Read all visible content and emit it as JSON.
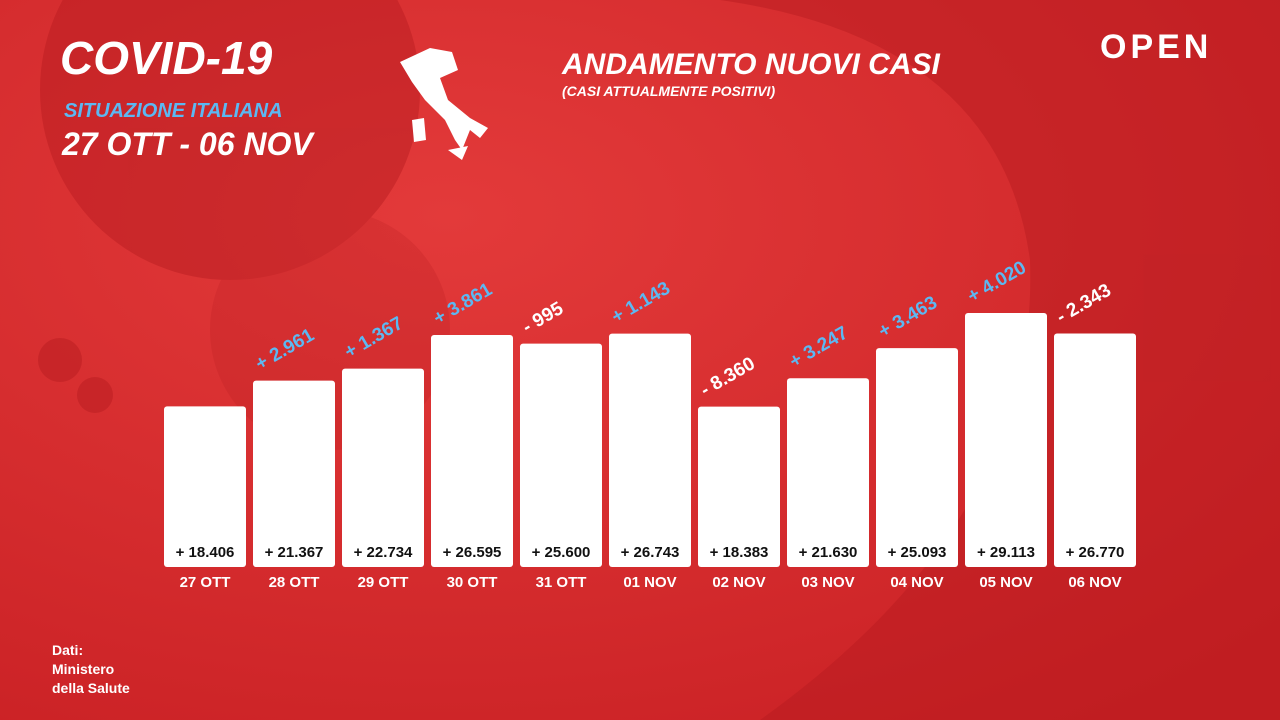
{
  "header": {
    "title": "COVID-19",
    "subtitle": "SITUAZIONE ITALIANA",
    "period": "27 OTT - 06 NOV"
  },
  "brand": "OPEN",
  "source": [
    "Dati:",
    "Ministero",
    "della Salute"
  ],
  "chart_data": {
    "type": "bar",
    "title": "ANDAMENTO NUOVI CASI",
    "subtitle": "(CASI ATTUALMENTE POSITIVI)",
    "categories": [
      "27 OTT",
      "28 OTT",
      "29 OTT",
      "30 OTT",
      "31 OTT",
      "01 NOV",
      "02 NOV",
      "03 NOV",
      "04 NOV",
      "05 NOV",
      "06 NOV"
    ],
    "values": [
      18406,
      21367,
      22734,
      26595,
      25600,
      26743,
      18383,
      21630,
      25093,
      29113,
      26770
    ],
    "value_labels": [
      "+ 18.406",
      "+ 21.367",
      "+ 22.734",
      "+ 26.595",
      "+ 25.600",
      "+ 26.743",
      "+ 18.383",
      "+ 21.630",
      "+ 25.093",
      "+ 29.113",
      "+ 26.770"
    ],
    "changes": [
      null,
      2961,
      1367,
      3861,
      -995,
      1143,
      -8360,
      3247,
      3463,
      4020,
      -2343
    ],
    "change_labels": [
      null,
      "+ 2.961",
      "+ 1.367",
      "+ 3.861",
      "- 995",
      "+ 1.143",
      "- 8.360",
      "+ 3.247",
      "+ 3.463",
      "+ 4.020",
      "- 2.343"
    ],
    "color": "#ffffff",
    "positive_color": "#5cb8f2",
    "negative_color": "#ffffff"
  }
}
